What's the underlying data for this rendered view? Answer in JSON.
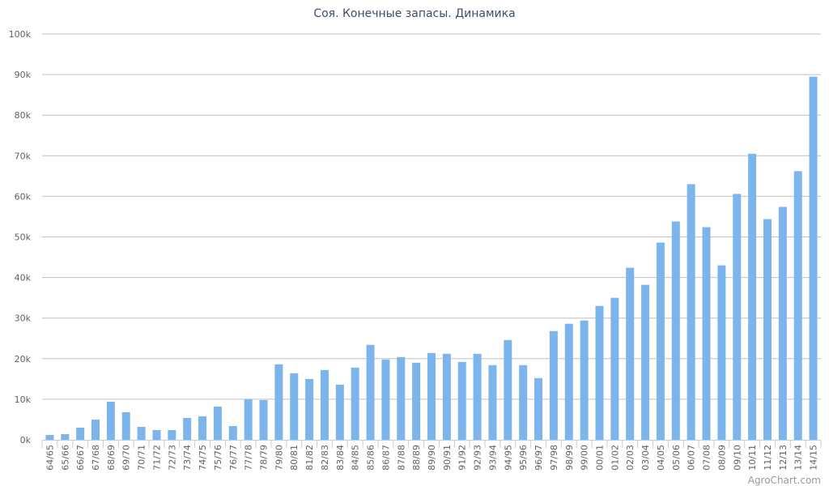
{
  "chart_data": {
    "type": "bar",
    "title": "Соя. Конечные запасы. Динамика",
    "xlabel": "",
    "ylabel": "",
    "ylim": [
      0,
      100000
    ],
    "yticks": [
      0,
      10000,
      20000,
      30000,
      40000,
      50000,
      60000,
      70000,
      80000,
      90000,
      100000
    ],
    "ytick_labels": [
      "0k",
      "10k",
      "20k",
      "30k",
      "40k",
      "50k",
      "60k",
      "70k",
      "80k",
      "90k",
      "100k"
    ],
    "grid": true,
    "bar_color": "#7cb5ec",
    "categories": [
      "64/65",
      "65/66",
      "66/67",
      "67/68",
      "68/69",
      "69/70",
      "70/71",
      "71/72",
      "72/73",
      "73/74",
      "74/75",
      "75/76",
      "76/77",
      "77/78",
      "78/79",
      "79/80",
      "80/81",
      "81/82",
      "82/83",
      "83/84",
      "84/85",
      "85/86",
      "86/87",
      "87/88",
      "88/89",
      "89/90",
      "90/91",
      "91/92",
      "92/93",
      "93/94",
      "94/95",
      "95/96",
      "96/97",
      "97/98",
      "98/99",
      "99/00",
      "00/01",
      "01/02",
      "02/03",
      "03/04",
      "04/05",
      "05/06",
      "06/07",
      "07/08",
      "08/09",
      "09/10",
      "10/11",
      "11/12",
      "12/13",
      "13/14",
      "14/15"
    ],
    "values": [
      1200,
      1400,
      3000,
      5000,
      9400,
      6800,
      3200,
      2400,
      2400,
      5400,
      5800,
      8200,
      3400,
      10000,
      9800,
      18600,
      16400,
      15000,
      17200,
      13600,
      17800,
      23400,
      19800,
      20400,
      19000,
      21400,
      21200,
      19200,
      21200,
      18400,
      24600,
      18400,
      15200,
      26800,
      28600,
      29400,
      33000,
      35000,
      42400,
      38200,
      48600,
      53800,
      63000,
      52400,
      43000,
      60600,
      70500,
      54400,
      57400,
      66200,
      89500
    ]
  },
  "credit": "AgroChart.com"
}
